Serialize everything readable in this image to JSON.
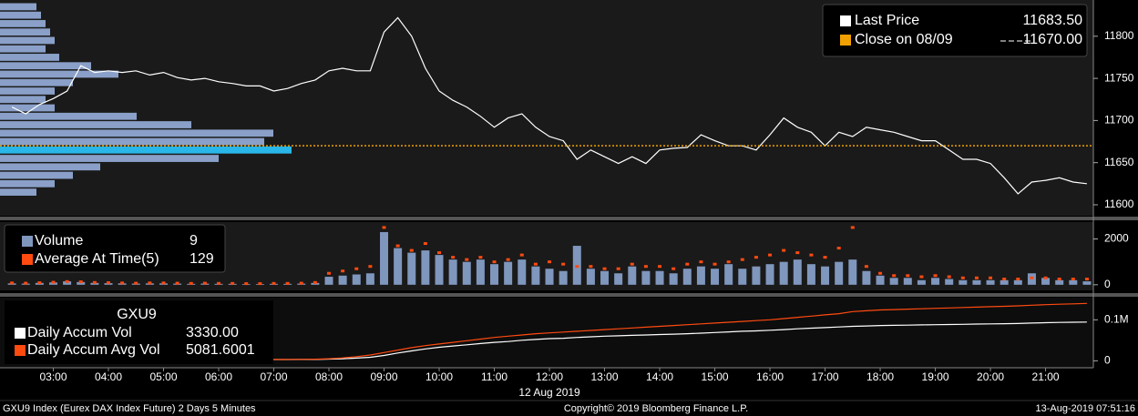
{
  "time_axis": {
    "x": [
      "02:15",
      "02:30",
      "02:45",
      "03:00",
      "03:15",
      "03:30",
      "03:45",
      "04:00",
      "04:15",
      "04:30",
      "04:45",
      "05:00",
      "05:15",
      "05:30",
      "05:45",
      "06:00",
      "06:15",
      "06:30",
      "06:45",
      "07:00",
      "07:15",
      "07:30",
      "07:45",
      "08:00",
      "08:15",
      "08:30",
      "08:45",
      "09:00",
      "09:15",
      "09:30",
      "09:45",
      "10:00",
      "10:15",
      "10:30",
      "10:45",
      "11:00",
      "11:15",
      "11:30",
      "11:45",
      "12:00",
      "12:15",
      "12:30",
      "12:45",
      "13:00",
      "13:15",
      "13:30",
      "13:45",
      "14:00",
      "14:15",
      "14:30",
      "14:45",
      "15:00",
      "15:15",
      "15:30",
      "15:45",
      "16:00",
      "16:15",
      "16:30",
      "16:45",
      "17:00",
      "17:15",
      "17:30",
      "17:45",
      "18:00",
      "18:15",
      "18:30",
      "18:45",
      "19:00",
      "19:15",
      "19:30",
      "19:45",
      "20:00",
      "20:15",
      "20:30",
      "20:45",
      "21:00",
      "21:15",
      "21:30",
      "21:45"
    ],
    "xlim": [
      "02:02",
      "21:52"
    ],
    "xticks": [
      "03:00",
      "04:00",
      "05:00",
      "06:00",
      "07:00",
      "08:00",
      "09:00",
      "10:00",
      "11:00",
      "12:00",
      "13:00",
      "14:00",
      "15:00",
      "16:00",
      "17:00",
      "18:00",
      "19:00",
      "20:00",
      "21:00"
    ],
    "date_label": "12 Aug 2019",
    "date_at": "12:00"
  },
  "chart_data": [
    {
      "type": "line",
      "ylim": [
        11587,
        11843
      ],
      "yticks": [
        11600,
        11650,
        11700,
        11750,
        11800
      ],
      "series": [
        {
          "name": "Last Price",
          "color": "#ffffff",
          "legend_value": "11683.50",
          "values": [
            11716,
            11708,
            11719,
            11726,
            11735,
            11765,
            11757,
            11759,
            11757,
            11759,
            11754,
            11757,
            11751,
            11748,
            11750,
            11746,
            11744,
            11741,
            11741,
            11735,
            11738,
            11744,
            11748,
            11759,
            11762,
            11759,
            11759,
            11805,
            11822,
            11800,
            11762,
            11735,
            11724,
            11716,
            11705,
            11692,
            11703,
            11708,
            11692,
            11681,
            11676,
            11654,
            11665,
            11657,
            11649,
            11657,
            11649,
            11665,
            11667,
            11668,
            11683,
            11676,
            11670,
            11670,
            11665,
            11683,
            11703,
            11692,
            11686,
            11670,
            11686,
            11681,
            11692,
            11689,
            11686,
            11681,
            11676,
            11676,
            11665,
            11654,
            11654,
            11649,
            11632,
            11613,
            11627,
            11629,
            11632,
            11627,
            11625
          ]
        },
        {
          "name": "Close on 08/09",
          "color": "#f0a000",
          "value": 11670,
          "legend_value": "11670.00",
          "style": "dotted"
        }
      ],
      "profile": {
        "color": "#8aa0c8",
        "highlight_level": 11665,
        "highlight_color": "#29b6e8",
        "xlim": [
          0,
          32000
        ],
        "levels": [
          11835,
          11825,
          11815,
          11805,
          11795,
          11785,
          11775,
          11765,
          11755,
          11745,
          11735,
          11725,
          11715,
          11705,
          11695,
          11685,
          11675,
          11665,
          11655,
          11645,
          11635,
          11625,
          11615
        ],
        "values": [
          4000,
          4500,
          5000,
          5500,
          6000,
          5000,
          6500,
          10000,
          13000,
          8000,
          6000,
          5000,
          6000,
          15000,
          21000,
          30000,
          29000,
          32000,
          24000,
          11000,
          8000,
          6000,
          4000
        ]
      }
    },
    {
      "type": "bar",
      "ylim": [
        -245,
        2735
      ],
      "yticks": [
        0,
        2000
      ],
      "series": [
        {
          "name": "Volume",
          "color": "#7f96bd",
          "legend_value": 9,
          "values": [
            60,
            50,
            80,
            100,
            150,
            120,
            80,
            70,
            60,
            50,
            60,
            60,
            50,
            40,
            50,
            40,
            40,
            30,
            30,
            40,
            40,
            50,
            80,
            350,
            400,
            450,
            500,
            2300,
            1600,
            1400,
            1500,
            1300,
            1100,
            1000,
            1100,
            900,
            1000,
            1100,
            800,
            700,
            600,
            1700,
            700,
            600,
            500,
            800,
            600,
            600,
            500,
            700,
            800,
            700,
            900,
            700,
            800,
            900,
            1000,
            1100,
            900,
            800,
            1000,
            1100,
            600,
            400,
            300,
            300,
            200,
            300,
            250,
            200,
            200,
            200,
            200,
            200,
            500,
            300,
            200,
            200,
            150
          ]
        },
        {
          "name": "Average At Time(5)",
          "color": "#ff4a10",
          "legend_value": 129,
          "style": "dots",
          "values": [
            80,
            70,
            90,
            110,
            140,
            130,
            100,
            90,
            80,
            70,
            80,
            80,
            70,
            60,
            70,
            60,
            60,
            50,
            50,
            60,
            60,
            70,
            100,
            500,
            600,
            700,
            800,
            2500,
            1700,
            1500,
            1800,
            1400,
            1200,
            1100,
            1200,
            1000,
            1100,
            1300,
            900,
            1000,
            900,
            800,
            800,
            700,
            700,
            900,
            800,
            800,
            700,
            900,
            1000,
            900,
            1000,
            1100,
            1200,
            1300,
            1500,
            1400,
            1300,
            1200,
            1600,
            2500,
            800,
            500,
            400,
            400,
            350,
            400,
            350,
            300,
            300,
            300,
            250,
            250,
            300,
            300,
            250,
            250,
            250
          ]
        }
      ]
    },
    {
      "type": "line",
      "title": "GXU9",
      "ylim": [
        -17000,
        154000
      ],
      "yticks": [
        0,
        {
          "value": 100000,
          "label": "0.1M"
        }
      ],
      "series": [
        {
          "name": "Daily Accum Vol",
          "color": "#ffffff",
          "legend_value": "3330.00",
          "values": [
            300,
            500,
            700,
            900,
            1200,
            1400,
            1600,
            1700,
            1800,
            1900,
            2000,
            2100,
            2200,
            2300,
            2400,
            2500,
            2600,
            2700,
            2800,
            2900,
            3000,
            3100,
            3300,
            4000,
            5000,
            6500,
            8500,
            13000,
            19000,
            24000,
            29000,
            33000,
            36000,
            39000,
            42000,
            45000,
            47000,
            50000,
            52000,
            54000,
            55000,
            57000,
            58500,
            60000,
            61000,
            62000,
            63000,
            64000,
            65000,
            66000,
            67500,
            69000,
            70500,
            72000,
            73000,
            74500,
            76000,
            78000,
            79500,
            81000,
            82500,
            84000,
            85000,
            86000,
            86500,
            87000,
            87500,
            88000,
            88500,
            89000,
            89500,
            90000,
            90500,
            91000,
            92000,
            93000,
            93500,
            94000,
            94500
          ]
        },
        {
          "name": "Daily Accum Avg Vol",
          "color": "#ff4a10",
          "legend_value": "5081.6001",
          "values": [
            400,
            500,
            800,
            1000,
            1400,
            1700,
            1900,
            2000,
            2100,
            2200,
            2300,
            2400,
            2500,
            2600,
            2700,
            2800,
            2900,
            3000,
            3100,
            3200,
            3300,
            3500,
            3800,
            5000,
            7000,
            10000,
            14000,
            20000,
            26000,
            32000,
            37000,
            41000,
            45000,
            49000,
            53000,
            57000,
            60000,
            63000,
            66000,
            68000,
            70000,
            72000,
            74000,
            76000,
            78000,
            80000,
            82000,
            84000,
            86000,
            88000,
            90000,
            92000,
            94000,
            96000,
            98000,
            100000,
            103000,
            106000,
            109000,
            112000,
            115000,
            120000,
            122000,
            124000,
            125000,
            126000,
            127000,
            128000,
            129000,
            130000,
            131000,
            132000,
            133000,
            134000,
            135500,
            137000,
            138000,
            139000,
            140000
          ]
        }
      ]
    }
  ],
  "footer": {
    "left": "GXU9 Index (Eurex DAX Index Future) 2 Days 5 Minutes",
    "center": "Copyright© 2019 Bloomberg Finance L.P.",
    "right": "13-Aug-2019 07:51:16"
  }
}
